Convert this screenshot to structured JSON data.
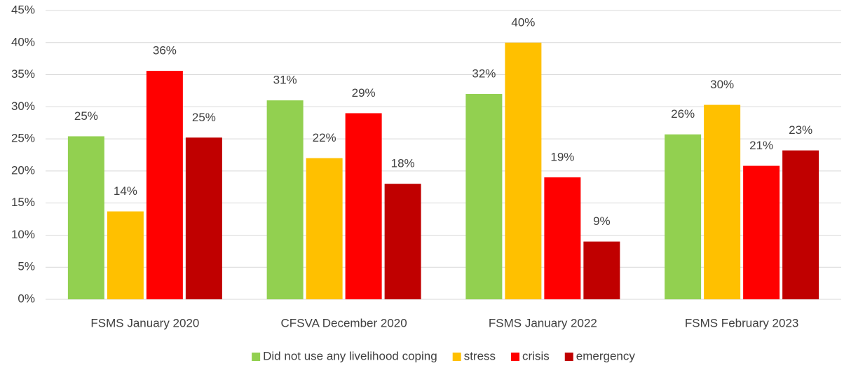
{
  "chart_data": {
    "type": "bar",
    "categories": [
      "FSMS January 2020",
      "CFSVA December 2020",
      "FSMS January 2022",
      "FSMS February 2023"
    ],
    "series": [
      {
        "name": "Did not use any livelihood coping",
        "color": "#92d050",
        "values": [
          25.4,
          31,
          32,
          25.7
        ],
        "value_labels": [
          "25%",
          "31%",
          "32%",
          "26%"
        ]
      },
      {
        "name": "stress",
        "color": "#ffc000",
        "values": [
          13.7,
          22,
          40,
          30.3
        ],
        "value_labels": [
          "14%",
          "22%",
          "40%",
          "30%"
        ]
      },
      {
        "name": "crisis",
        "color": "#ff0000",
        "values": [
          35.6,
          29,
          19,
          20.8
        ],
        "value_labels": [
          "36%",
          "29%",
          "19%",
          "21%"
        ]
      },
      {
        "name": "emergency",
        "color": "#c00000",
        "values": [
          25.2,
          18,
          9,
          23.2
        ],
        "value_labels": [
          "25%",
          "18%",
          "9%",
          "23%"
        ]
      }
    ],
    "ylim": [
      0,
      45
    ],
    "yticks": [
      {
        "value": 0,
        "label": "0%"
      },
      {
        "value": 5,
        "label": "5%"
      },
      {
        "value": 10,
        "label": "10%"
      },
      {
        "value": 15,
        "label": "15%"
      },
      {
        "value": 20,
        "label": "20%"
      },
      {
        "value": 25,
        "label": "25%"
      },
      {
        "value": 30,
        "label": "30%"
      },
      {
        "value": 35,
        "label": "35%"
      },
      {
        "value": 40,
        "label": "40%"
      },
      {
        "value": 45,
        "label": "45%"
      }
    ],
    "grid": true,
    "legend": "bottom"
  }
}
